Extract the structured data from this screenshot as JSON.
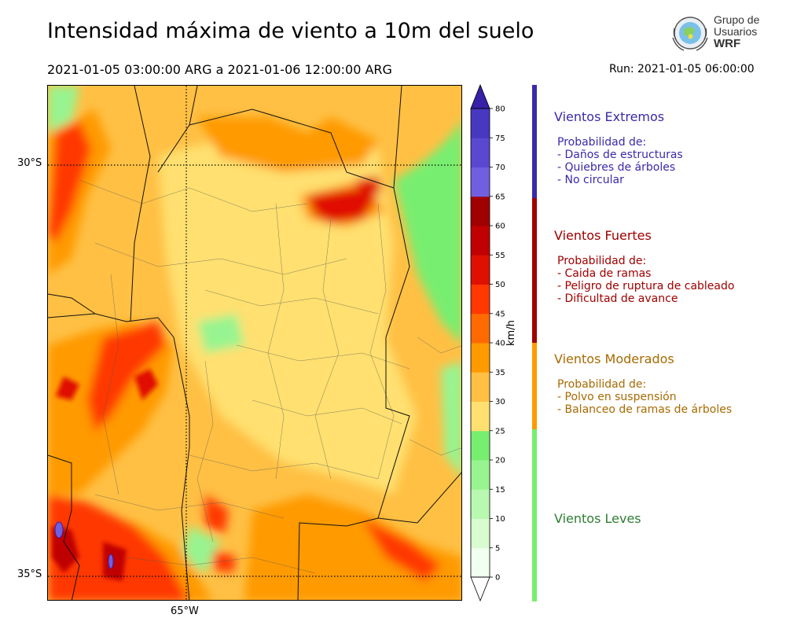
{
  "title": "Intensidad máxima de viento a 10m del suelo",
  "period": "2021-01-05 03:00:00 ARG  a  2021-01-06 12:00:00 ARG",
  "run": "Run: 2021-01-05 06:00:00",
  "logo": {
    "line1": "Grupo de",
    "line2": "Usuarios",
    "line3": "WRF"
  },
  "map": {
    "lat_labels": [
      "30°S",
      "35°S"
    ],
    "lon_labels": [
      "65°W"
    ]
  },
  "colorbar": {
    "units": "km/h",
    "ticks": [
      "0",
      "5",
      "10",
      "15",
      "20",
      "25",
      "30",
      "35",
      "40",
      "45",
      "50",
      "55",
      "60",
      "65",
      "70",
      "75",
      "80"
    ],
    "colors": [
      "#f0fff0",
      "#d8fcd0",
      "#b8f8b0",
      "#98f490",
      "#78ee70",
      "#ffe070",
      "#ffc044",
      "#ff9a00",
      "#ff6a00",
      "#ff3800",
      "#e01000",
      "#c00000",
      "#a00000",
      "#7060e0",
      "#5a48d0",
      "#4838c0",
      "#3820a8"
    ]
  },
  "categories": [
    {
      "title": "Vientos Extremos",
      "color": "#3a2aa8",
      "text_color": "#3a2aa8",
      "desc": [
        "Probabilidad de:",
        "- Daños de estructuras",
        "- Quiebres de árboles",
        "- No circular"
      ]
    },
    {
      "title": "Vientos Fuertes",
      "color": "#a00000",
      "text_color": "#a00000",
      "desc": [
        "Probabilidad de:",
        "- Caida de ramas",
        "- Peligro de ruptura de cableado",
        "- Dificultad de avance"
      ]
    },
    {
      "title": "Vientos Moderados",
      "color": "#ff9a00",
      "text_color": "#a86a00",
      "desc": [
        "Probabilidad de:",
        "- Polvo en suspensión",
        "- Balanceo de ramas de árboles"
      ]
    },
    {
      "title": "Vientos Leves",
      "color": "#78ee70",
      "text_color": "#2e7d32",
      "desc": []
    }
  ]
}
